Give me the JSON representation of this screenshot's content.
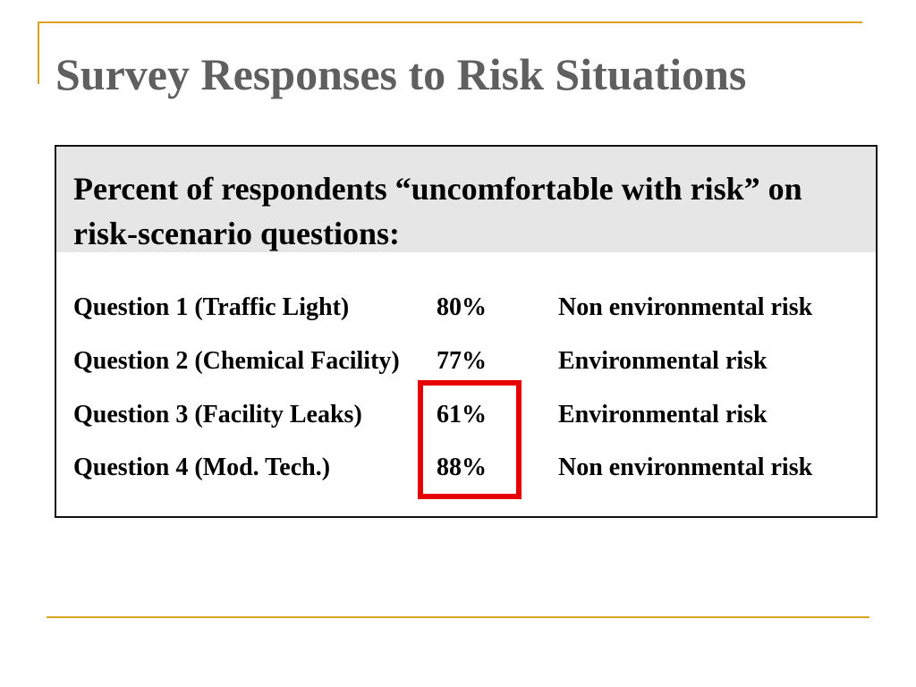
{
  "slide": {
    "title": "Survey Responses to Risk Situations",
    "table": {
      "header": "Percent of respondents “uncomfortable with risk” on risk-scenario questions:",
      "rows": [
        {
          "question": "Question 1 (Traffic Light)",
          "percent": "80%",
          "category": "Non environmental risk"
        },
        {
          "question": "Question 2 (Chemical Facility)",
          "percent": "77%",
          "category": "Environmental risk"
        },
        {
          "question": "Question 3 (Facility Leaks)",
          "percent": "61%",
          "category": "Environmental risk"
        },
        {
          "question": "Question 4 (Mod. Tech.)",
          "percent": "88%",
          "category": "Non environmental risk"
        }
      ]
    },
    "colors": {
      "accent_line": "#d9a520",
      "title_text": "#5f5f5f",
      "highlight": "#e60000",
      "header_band": "#e6e6e6"
    }
  }
}
